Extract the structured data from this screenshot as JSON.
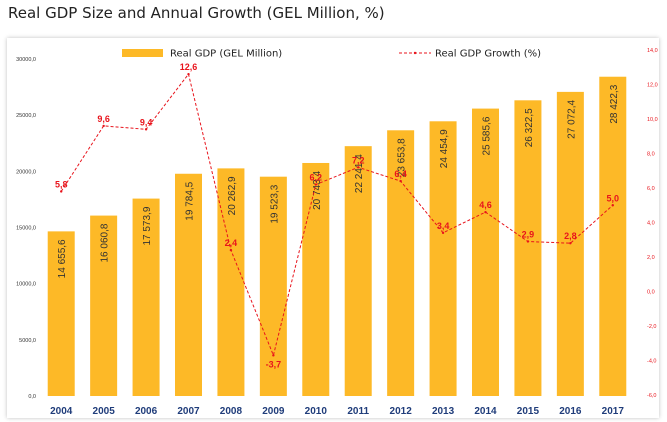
{
  "chart_data": {
    "type": "bar+line",
    "title": "Real GDP Size and Annual Growth (GEL Million, %)",
    "categories": [
      "2004",
      "2005",
      "2006",
      "2007",
      "2008",
      "2009",
      "2010",
      "2011",
      "2012",
      "2013",
      "2014",
      "2015",
      "2016",
      "2017"
    ],
    "series": [
      {
        "name": "Real GDP (GEL Million)",
        "axis": "left",
        "kind": "bar",
        "color": "#FDB927",
        "values": [
          14655.6,
          16060.8,
          17573.9,
          19784.5,
          20262.9,
          19523.3,
          20743.4,
          22241.4,
          23653.8,
          24454.9,
          25585.6,
          26322.5,
          27072.4,
          28422.3
        ],
        "labels": [
          "14 655,6",
          "16 060,8",
          "17 573,9",
          "19 784,5",
          "20 262,9",
          "19 523,3",
          "20 743,4",
          "22 241,4",
          "23 653,8",
          "24 454,9",
          "25 585,6",
          "26 322,5",
          "27 072,4",
          "28 422,3"
        ]
      },
      {
        "name": "Real GDP Growth (%)",
        "axis": "right",
        "kind": "line",
        "color": "#E8141C",
        "style": "dashed",
        "values": [
          5.8,
          9.6,
          9.4,
          12.6,
          2.4,
          -3.7,
          6.2,
          7.2,
          6.4,
          3.4,
          4.6,
          2.9,
          2.8,
          5.0
        ],
        "labels": [
          "5,8",
          "9,6",
          "9,4",
          "12,6",
          "2,4",
          "-3,7",
          "6,2",
          "7,2",
          "6,4",
          "3,4",
          "4,6",
          "2,9",
          "2,8",
          "5,0"
        ]
      }
    ],
    "y_left": {
      "min": 0,
      "max": 30000,
      "ticks": [
        "0,0",
        "5000,0",
        "10000,0",
        "15000,0",
        "20000,0",
        "25000,0",
        "30000,0"
      ]
    },
    "y_right": {
      "min": -6,
      "max": 14,
      "ticks": [
        "-6,0",
        "-4,0",
        "-2,0",
        "0,0",
        "2,0",
        "4,0",
        "6,0",
        "8,0",
        "10,0",
        "12,0",
        "14,0"
      ],
      "color": "#E8141C"
    },
    "legend": {
      "position": "top"
    },
    "grid": false
  }
}
